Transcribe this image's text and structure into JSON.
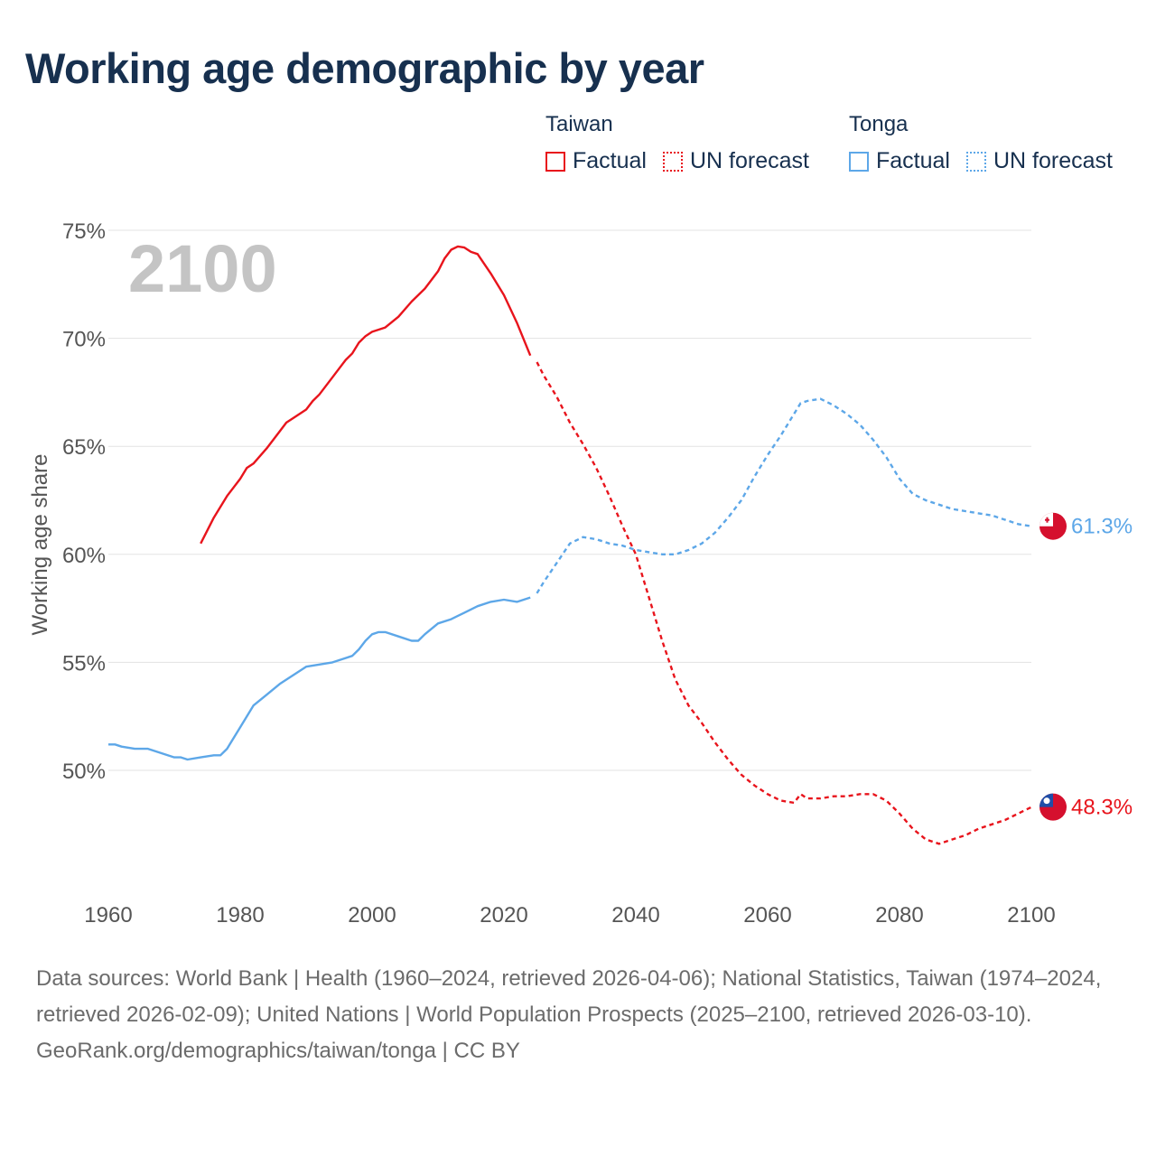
{
  "title": "Working age demographic by year",
  "legend": {
    "groups": [
      {
        "name": "Taiwan",
        "color": "#e8141c",
        "factual_label": "Factual",
        "forecast_label": "UN forecast"
      },
      {
        "name": "Tonga",
        "color": "#5da7e8",
        "factual_label": "Factual",
        "forecast_label": "UN forecast"
      }
    ]
  },
  "footer": {
    "sources": "Data sources: World Bank | Health (1960–2024, retrieved 2026-04-06); National Statistics, Taiwan (1974–2024, retrieved 2026-02-09); United Nations | World Population Prospects (2025–2100, retrieved 2026-03-10).",
    "credit": "GeoRank.org/demographics/taiwan/tonga | CC BY"
  },
  "chart_data": {
    "type": "line",
    "title": "Working age demographic by year",
    "year_label": "2100",
    "xlabel": "",
    "ylabel": "Working age share",
    "xlim": [
      1960,
      2100
    ],
    "ylim": [
      45,
      75
    ],
    "x_ticks": [
      "1960",
      "1980",
      "2000",
      "2020",
      "2040",
      "2060",
      "2080",
      "2100"
    ],
    "y_ticks": [
      "50%",
      "55%",
      "60%",
      "65%",
      "70%",
      "75%"
    ],
    "grid": true,
    "series": [
      {
        "name": "Taiwan",
        "color": "#e8141c",
        "end_label": "48.3%",
        "factual": {
          "x": [
            1974,
            1976,
            1978,
            1980,
            1981,
            1982,
            1984,
            1986,
            1987,
            1988,
            1990,
            1991,
            1992,
            1994,
            1996,
            1997,
            1998,
            1999,
            2000,
            2002,
            2004,
            2006,
            2008,
            2009,
            2010,
            2011,
            2012,
            2013,
            2014,
            2015,
            2016,
            2018,
            2019,
            2020,
            2022,
            2024
          ],
          "y": [
            60.5,
            61.7,
            62.7,
            63.5,
            64.0,
            64.2,
            64.9,
            65.7,
            66.1,
            66.3,
            66.7,
            67.1,
            67.4,
            68.2,
            69.0,
            69.3,
            69.8,
            70.1,
            70.3,
            70.5,
            71.0,
            71.7,
            72.3,
            72.7,
            73.1,
            73.7,
            74.1,
            74.25,
            74.2,
            74.0,
            73.9,
            73.0,
            72.5,
            72.0,
            70.7,
            69.2
          ]
        },
        "forecast": {
          "x": [
            2025,
            2026,
            2028,
            2030,
            2032,
            2034,
            2036,
            2038,
            2040,
            2042,
            2044,
            2046,
            2048,
            2050,
            2052,
            2054,
            2056,
            2058,
            2060,
            2062,
            2064,
            2065,
            2066,
            2068,
            2070,
            2072,
            2074,
            2076,
            2078,
            2080,
            2082,
            2084,
            2086,
            2088,
            2090,
            2092,
            2094,
            2096,
            2098,
            2100
          ],
          "y": [
            68.9,
            68.3,
            67.3,
            66.1,
            65.1,
            64.0,
            62.7,
            61.3,
            60.0,
            58.0,
            56.0,
            54.2,
            53.0,
            52.2,
            51.3,
            50.5,
            49.8,
            49.3,
            48.9,
            48.6,
            48.5,
            48.9,
            48.7,
            48.7,
            48.8,
            48.8,
            48.9,
            48.9,
            48.6,
            48.0,
            47.3,
            46.8,
            46.6,
            46.8,
            47.0,
            47.3,
            47.5,
            47.7,
            48.0,
            48.3
          ]
        }
      },
      {
        "name": "Tonga",
        "color": "#5da7e8",
        "end_label": "61.3%",
        "factual": {
          "x": [
            1960,
            1961,
            1962,
            1964,
            1966,
            1968,
            1970,
            1971,
            1972,
            1974,
            1976,
            1977,
            1978,
            1980,
            1982,
            1984,
            1986,
            1988,
            1990,
            1992,
            1994,
            1996,
            1997,
            1998,
            1999,
            2000,
            2001,
            2002,
            2004,
            2006,
            2007,
            2008,
            2010,
            2012,
            2014,
            2016,
            2018,
            2020,
            2022,
            2024
          ],
          "y": [
            51.2,
            51.2,
            51.1,
            51.0,
            51.0,
            50.8,
            50.6,
            50.6,
            50.5,
            50.6,
            50.7,
            50.7,
            51.0,
            52.0,
            53.0,
            53.5,
            54.0,
            54.4,
            54.8,
            54.9,
            55.0,
            55.2,
            55.3,
            55.6,
            56.0,
            56.3,
            56.4,
            56.4,
            56.2,
            56.0,
            56.0,
            56.3,
            56.8,
            57.0,
            57.3,
            57.6,
            57.8,
            57.9,
            57.8,
            58.0
          ]
        },
        "forecast": {
          "x": [
            2025,
            2026,
            2028,
            2030,
            2032,
            2034,
            2036,
            2038,
            2040,
            2042,
            2044,
            2046,
            2048,
            2050,
            2052,
            2054,
            2056,
            2058,
            2060,
            2062,
            2064,
            2065,
            2066,
            2068,
            2070,
            2072,
            2074,
            2076,
            2078,
            2080,
            2082,
            2084,
            2086,
            2088,
            2090,
            2092,
            2094,
            2096,
            2098,
            2100
          ],
          "y": [
            58.2,
            58.7,
            59.6,
            60.5,
            60.8,
            60.7,
            60.5,
            60.4,
            60.2,
            60.1,
            60.0,
            60.0,
            60.2,
            60.5,
            61.0,
            61.7,
            62.5,
            63.6,
            64.6,
            65.5,
            66.5,
            67.0,
            67.1,
            67.2,
            66.9,
            66.5,
            66.0,
            65.3,
            64.5,
            63.5,
            62.8,
            62.5,
            62.3,
            62.1,
            62.0,
            61.9,
            61.8,
            61.6,
            61.4,
            61.3
          ]
        }
      }
    ]
  }
}
